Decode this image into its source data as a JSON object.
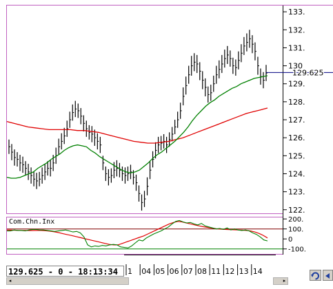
{
  "status": {
    "readout": "129.625 - 0 - 18:13:34"
  },
  "tool_icons": [
    "refresh-icon",
    "arrow-left-icon"
  ],
  "colors": {
    "price": "#000000",
    "ma_long": "#e00000",
    "ma_short": "#008000",
    "current_price_line": "#000080",
    "border": "#c060c0",
    "cci_line": "#008000",
    "cci_signal": "#e00000",
    "cci_upper": "#800000",
    "cci_lower": "#008000"
  },
  "chart_data": [
    {
      "type": "ohlc",
      "y_ticks": [
        "122.",
        "123.",
        "124.",
        "125.",
        "126.",
        "127.",
        "128.",
        "129.",
        "130",
        "131.",
        "132.",
        "133."
      ],
      "ylim": [
        121.8,
        133.35
      ],
      "current_price": "129.625",
      "current_value": 129.625,
      "x_ticks": [
        "1",
        "04",
        "05",
        "06",
        "07",
        "08",
        "11",
        "12",
        "13",
        "14"
      ],
      "series": [
        {
          "kind": "price",
          "values": [
            125.5,
            125.2,
            124.9,
            124.8,
            124.6,
            124.5,
            124.3,
            124.1,
            123.9,
            123.7,
            123.6,
            123.7,
            123.9,
            124.1,
            124.3,
            124.3,
            124.6,
            125.0,
            125.5,
            125.8,
            126.1,
            126.5,
            127.0,
            127.4,
            127.6,
            127.5,
            127.2,
            126.8,
            126.5,
            126.3,
            126.2,
            126.0,
            125.8,
            125.6,
            124.6,
            124.0,
            123.8,
            123.9,
            124.2,
            124.3,
            124.2,
            124.0,
            123.9,
            124.0,
            124.1,
            123.8,
            123.5,
            122.9,
            122.4,
            122.6,
            123.3,
            124.2,
            124.8,
            125.3,
            125.6,
            125.7,
            125.8,
            125.6,
            125.9,
            126.2,
            126.6,
            127.0,
            127.5,
            128.3,
            128.9,
            129.5,
            130.0,
            130.2,
            130.1,
            129.7,
            129.2,
            128.8,
            128.4,
            128.5,
            129.0,
            129.5,
            129.8,
            130.1,
            130.4,
            130.6,
            130.4,
            130.0,
            129.9,
            130.3,
            130.7,
            131.1,
            131.3,
            131.5,
            131.2,
            130.8,
            130.0,
            129.4,
            129.2,
            129.6
          ],
          "ranges": [
            0.8,
            0.9,
            0.9,
            0.8,
            0.9,
            0.9,
            0.8,
            0.9,
            0.9,
            0.8,
            0.9,
            0.8,
            0.9,
            0.9,
            0.8,
            0.9,
            0.9,
            0.9,
            0.9,
            0.9,
            0.9,
            0.9,
            0.9,
            0.9,
            0.9,
            0.8,
            0.9,
            0.9,
            0.9,
            0.8,
            0.9,
            0.9,
            0.9,
            0.9,
            0.8,
            0.8,
            0.9,
            0.8,
            0.9,
            0.9,
            0.8,
            0.8,
            0.9,
            0.8,
            0.8,
            0.8,
            0.9,
            0.9,
            0.9,
            0.9,
            1.0,
            1.0,
            0.9,
            0.9,
            0.9,
            0.8,
            0.8,
            0.9,
            0.8,
            0.8,
            0.8,
            0.9,
            0.9,
            1.0,
            1.0,
            1.0,
            1.1,
            1.0,
            1.0,
            1.0,
            1.0,
            1.0,
            0.9,
            0.9,
            0.9,
            1.0,
            1.0,
            1.0,
            1.0,
            1.0,
            0.9,
            0.9,
            0.9,
            1.0,
            1.0,
            1.0,
            1.0,
            1.0,
            1.0,
            1.0,
            1.0,
            0.9,
            0.9,
            0.9
          ]
        },
        {
          "kind": "moving_average_short",
          "values": [
            123.8,
            123.75,
            123.75,
            123.8,
            123.9,
            124.0,
            124.1,
            124.3,
            124.45,
            124.6,
            124.8,
            124.95,
            125.1,
            125.3,
            125.45,
            125.55,
            125.6,
            125.55,
            125.5,
            125.3,
            125.15,
            124.95,
            124.8,
            124.65,
            124.5,
            124.35,
            124.2,
            124.1,
            124.05,
            124.1,
            124.2,
            124.4,
            124.6,
            124.85,
            125.05,
            125.2,
            125.4,
            125.6,
            125.8,
            126.05,
            126.3,
            126.6,
            126.95,
            127.25,
            127.5,
            127.75,
            127.95,
            128.1,
            128.3,
            128.45,
            128.6,
            128.75,
            128.85,
            129.0,
            129.1,
            129.2,
            129.3,
            129.35,
            129.4,
            129.45
          ]
        },
        {
          "kind": "moving_average_long",
          "values": [
            126.9,
            126.8,
            126.7,
            126.6,
            126.55,
            126.5,
            126.45,
            126.45,
            126.45,
            126.45,
            126.4,
            126.4,
            126.35,
            126.3,
            126.2,
            126.1,
            126.0,
            125.9,
            125.8,
            125.75,
            125.7,
            125.7,
            125.75,
            125.8,
            125.9,
            126.0,
            126.15,
            126.3,
            126.45,
            126.6,
            126.75,
            126.9,
            127.05,
            127.2,
            127.35,
            127.45,
            127.55,
            127.65
          ]
        }
      ]
    },
    {
      "type": "line",
      "title": "Com.Chn.Inx",
      "y_ticks": [
        "200.",
        "100.",
        "0",
        "-100."
      ],
      "ylim": [
        -150,
        215
      ],
      "levels": [
        100,
        -100
      ],
      "series": [
        {
          "kind": "cci",
          "values": [
            80,
            80,
            90,
            85,
            85,
            80,
            90,
            95,
            95,
            90,
            90,
            85,
            80,
            75,
            80,
            85,
            90,
            80,
            70,
            75,
            60,
            20,
            -60,
            -80,
            -70,
            -75,
            -65,
            -70,
            -60,
            -55,
            -60,
            -80,
            -85,
            -90,
            -70,
            -40,
            -10,
            -20,
            10,
            30,
            50,
            65,
            80,
            100,
            120,
            150,
            175,
            185,
            170,
            160,
            165,
            150,
            140,
            155,
            130,
            120,
            110,
            100,
            105,
            95,
            110,
            90,
            100,
            90,
            85,
            90,
            80,
            60,
            45,
            20,
            -10,
            -20
          ]
        },
        {
          "kind": "cci_signal",
          "values": [
            90,
            88,
            86,
            85,
            84,
            84,
            84,
            85,
            85,
            82,
            78,
            72,
            64,
            54,
            44,
            35,
            25,
            15,
            5,
            -5,
            -15,
            -25,
            -35,
            -45,
            -55,
            -60,
            -60,
            -45,
            -30,
            -15,
            0,
            15,
            30,
            50,
            70,
            90,
            110,
            130,
            150,
            165,
            175,
            170,
            160,
            150,
            140,
            130,
            122,
            115,
            108,
            102,
            98,
            95,
            93,
            92,
            90,
            88,
            85,
            80,
            70,
            55,
            35,
            10
          ]
        }
      ]
    }
  ]
}
